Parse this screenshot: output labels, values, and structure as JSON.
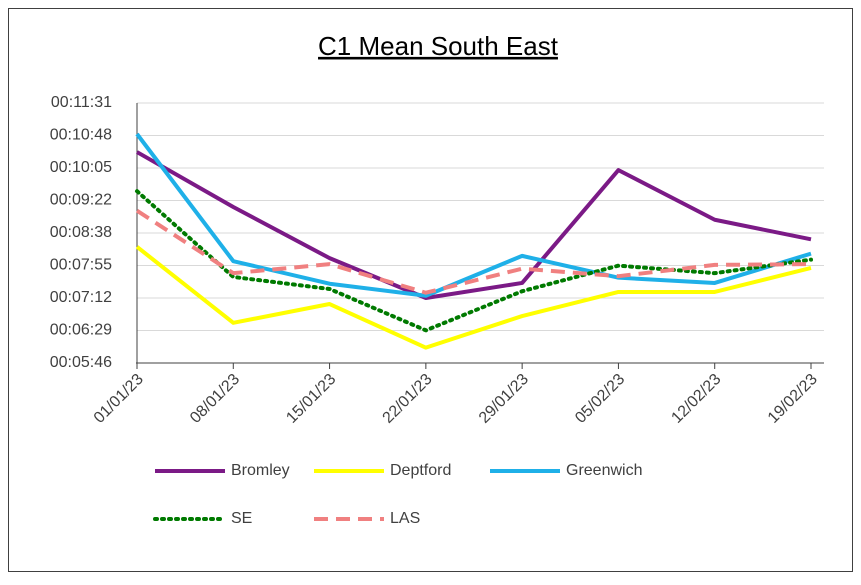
{
  "chart_data": {
    "type": "line",
    "title": "C1 Mean South East",
    "categories": [
      "01/01/23",
      "08/01/23",
      "15/01/23",
      "22/01/23",
      "29/01/23",
      "05/02/23",
      "12/02/23",
      "19/02/23"
    ],
    "ylim": [
      345.6,
      691.2
    ],
    "yticks": [
      {
        "value": 345.6,
        "label": "00:05:46"
      },
      {
        "value": 388.8,
        "label": "00:06:29"
      },
      {
        "value": 432,
        "label": "00:07:12"
      },
      {
        "value": 475.2,
        "label": "00:07:55"
      },
      {
        "value": 518.4,
        "label": "00:08:38"
      },
      {
        "value": 561.6,
        "label": "00:09:22"
      },
      {
        "value": 604.8,
        "label": "00:10:05"
      },
      {
        "value": 648,
        "label": "00:10:48"
      },
      {
        "value": 691.2,
        "label": "00:11:31"
      }
    ],
    "grid": true,
    "series": [
      {
        "name": "Bromley",
        "color": "#7b1a86",
        "style": "solid",
        "values": [
          626,
          553,
          485,
          432,
          452,
          602,
          536,
          510
        ]
      },
      {
        "name": "Deptford",
        "color": "#ffff00",
        "style": "solid",
        "values": [
          500,
          399,
          424,
          366,
          408,
          440,
          440,
          472
        ]
      },
      {
        "name": "Greenwich",
        "color": "#1fb0e8",
        "style": "solid",
        "values": [
          650,
          481,
          451,
          435,
          488,
          459,
          452,
          491
        ]
      },
      {
        "name": "SE",
        "color": "#007a00",
        "style": "dotted",
        "values": [
          574,
          460,
          444,
          389,
          441,
          475,
          465,
          483
        ]
      },
      {
        "name": "LAS",
        "color": "#f08080",
        "style": "dashed",
        "values": [
          548,
          465,
          477,
          439,
          471,
          461,
          476,
          477
        ]
      }
    ]
  }
}
